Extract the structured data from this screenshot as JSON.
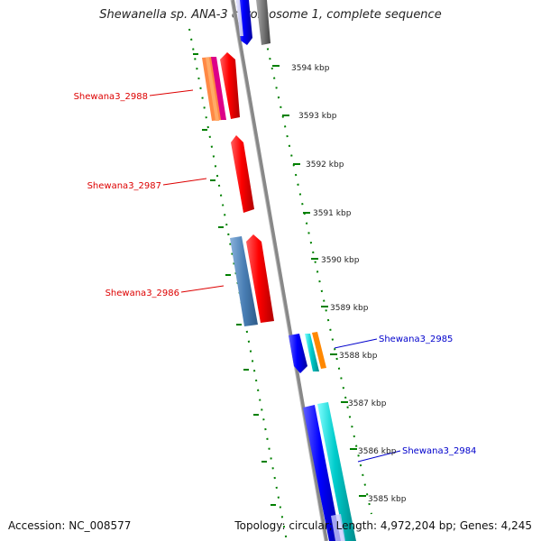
{
  "title": "Shewanella sp. ANA-3 chromosome 1, complete sequence",
  "footer": {
    "accession": "Accession: NC_008577",
    "topology": "Topology: circular; Length: 4,972,204 bp; Genes: 4,245"
  },
  "ruler": {
    "ticks": [
      {
        "label": "3594 kbp"
      },
      {
        "label": "3593 kbp"
      },
      {
        "label": "3592 kbp"
      },
      {
        "label": "3591 kbp"
      },
      {
        "label": "3590 kbp"
      },
      {
        "label": "3589 kbp"
      },
      {
        "label": "3588 kbp"
      },
      {
        "label": "3587 kbp"
      },
      {
        "label": "3586 kbp"
      },
      {
        "label": "3585 kbp"
      }
    ]
  },
  "gene_labels": [
    {
      "name": "Shewana3_2988",
      "color": "#dd0000"
    },
    {
      "name": "Shewana3_2987",
      "color": "#dd0000"
    },
    {
      "name": "Shewana3_2986",
      "color": "#dd0000"
    },
    {
      "name": "Shewana3_2985",
      "color": "#0000cc"
    },
    {
      "name": "Shewana3_2984",
      "color": "#0000cc"
    }
  ],
  "colors": {
    "forward_cds": "#ff0000",
    "reverse_cds": "#0000ff",
    "backbone": "#888888",
    "tick_marks": "#008000",
    "cyan_feature": "#00cccc",
    "orange_feature": "#ff8800",
    "steelblue_feature": "#4a7fb5"
  }
}
